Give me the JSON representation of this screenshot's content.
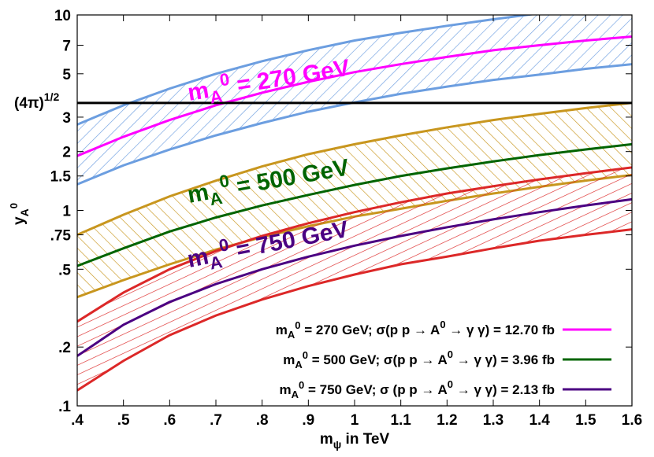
{
  "chart_data": {
    "type": "line",
    "xlabel": "m",
    "xlabel_sub": "ψ",
    "xlabel_rest": " in TeV",
    "ylabel": "y",
    "ylabel_sub": "A",
    "ylabel_sup": "0",
    "xlim": [
      0.4,
      1.6
    ],
    "ylim": [
      0.1,
      10
    ],
    "yscale": "log",
    "x_ticks": [
      {
        "value": 0.4,
        "label": ".4"
      },
      {
        "value": 0.5,
        "label": ".5"
      },
      {
        "value": 0.6,
        "label": ".6"
      },
      {
        "value": 0.7,
        "label": ".7"
      },
      {
        "value": 0.8,
        "label": ".8"
      },
      {
        "value": 0.9,
        "label": ".9"
      },
      {
        "value": 1.0,
        "label": "1"
      },
      {
        "value": 1.1,
        "label": "1.1"
      },
      {
        "value": 1.2,
        "label": "1.2"
      },
      {
        "value": 1.3,
        "label": "1.3"
      },
      {
        "value": 1.4,
        "label": "1.4"
      },
      {
        "value": 1.5,
        "label": "1.5"
      },
      {
        "value": 1.6,
        "label": "1.6"
      }
    ],
    "y_ticks": [
      {
        "value": 0.1,
        "label": ".1"
      },
      {
        "value": 0.2,
        "label": ".2"
      },
      {
        "value": 0.5,
        "label": ".5"
      },
      {
        "value": 0.75,
        "label": ".75"
      },
      {
        "value": 1,
        "label": "1"
      },
      {
        "value": 1.5,
        "label": "1.5"
      },
      {
        "value": 2,
        "label": "2"
      },
      {
        "value": 3,
        "label": "3"
      },
      {
        "value": 5,
        "label": "5"
      },
      {
        "value": 7,
        "label": "7"
      },
      {
        "value": 10,
        "label": "10"
      }
    ],
    "reference_line": {
      "value": 3.545,
      "label": "(4π)",
      "label_sup": "1/2",
      "color": "#000000"
    },
    "series": [
      {
        "name_prefix": "m",
        "name_sub": "A",
        "name_sup": "0",
        "name_rest": " = 270 GeV; σ(p p → A",
        "name_rest_sup": "0",
        "name_end": " → γ γ) = 12.70 fb",
        "band_label": "m",
        "band_label_sub": "A",
        "band_label_sup": "0",
        "band_label_rest": " = 270 GeV",
        "color": "#ff00ff",
        "band_color": "#6c9ee0",
        "x": [
          0.4,
          0.5,
          0.6,
          0.7,
          0.8,
          0.9,
          1.0,
          1.1,
          1.2,
          1.3,
          1.4,
          1.5,
          1.6
        ],
        "values": [
          1.9,
          2.38,
          2.9,
          3.45,
          4.0,
          4.55,
          5.1,
          5.6,
          6.1,
          6.6,
          7.0,
          7.4,
          7.75
        ],
        "lower": [
          1.36,
          1.7,
          2.05,
          2.42,
          2.8,
          3.2,
          3.57,
          3.95,
          4.3,
          4.65,
          4.95,
          5.3,
          5.6
        ],
        "upper": [
          2.75,
          3.45,
          4.2,
          5.0,
          5.8,
          6.6,
          7.4,
          8.1,
          8.8,
          9.5,
          10.2,
          10.9,
          11.6
        ]
      },
      {
        "name_prefix": "m",
        "name_sub": "A",
        "name_sup": "0",
        "name_rest": " = 500 GeV; σ(p p → A",
        "name_rest_sup": "0",
        "name_end": " → γ γ) = 3.96 fb",
        "band_label": "m",
        "band_label_sub": "A",
        "band_label_sup": "0",
        "band_label_rest": " = 500 GeV",
        "color": "#006400",
        "band_color": "#c8961e",
        "x": [
          0.4,
          0.5,
          0.6,
          0.7,
          0.8,
          0.9,
          1.0,
          1.1,
          1.2,
          1.3,
          1.4,
          1.5,
          1.6
        ],
        "values": [
          0.52,
          0.64,
          0.78,
          0.92,
          1.06,
          1.2,
          1.35,
          1.5,
          1.64,
          1.78,
          1.92,
          2.05,
          2.18
        ],
        "lower": [
          0.36,
          0.44,
          0.53,
          0.63,
          0.73,
          0.83,
          0.93,
          1.02,
          1.12,
          1.22,
          1.32,
          1.42,
          1.52
        ],
        "upper": [
          0.75,
          0.95,
          1.18,
          1.42,
          1.68,
          1.94,
          2.18,
          2.42,
          2.66,
          2.9,
          3.12,
          3.34,
          3.55
        ]
      },
      {
        "name_prefix": "m",
        "name_sub": "A",
        "name_sup": "0",
        "name_rest": " = 750 GeV; σ (p p → A",
        "name_rest_sup": "0",
        "name_end": " → γ γ) = 2.13 fb",
        "band_label": "m",
        "band_label_sub": "A",
        "band_label_sup": "0",
        "band_label_rest": " = 750 GeV",
        "color": "#4b0082",
        "band_color": "#dc2828",
        "x": [
          0.4,
          0.5,
          0.6,
          0.7,
          0.8,
          0.9,
          1.0,
          1.1,
          1.2,
          1.3,
          1.4,
          1.5,
          1.6
        ],
        "values": [
          0.18,
          0.26,
          0.34,
          0.42,
          0.5,
          0.58,
          0.66,
          0.74,
          0.82,
          0.9,
          0.98,
          1.06,
          1.14
        ],
        "lower": [
          0.12,
          0.17,
          0.23,
          0.29,
          0.35,
          0.41,
          0.47,
          0.53,
          0.58,
          0.64,
          0.7,
          0.75,
          0.8
        ],
        "upper": [
          0.27,
          0.38,
          0.5,
          0.62,
          0.74,
          0.86,
          0.98,
          1.1,
          1.22,
          1.33,
          1.44,
          1.55,
          1.66
        ]
      }
    ]
  }
}
